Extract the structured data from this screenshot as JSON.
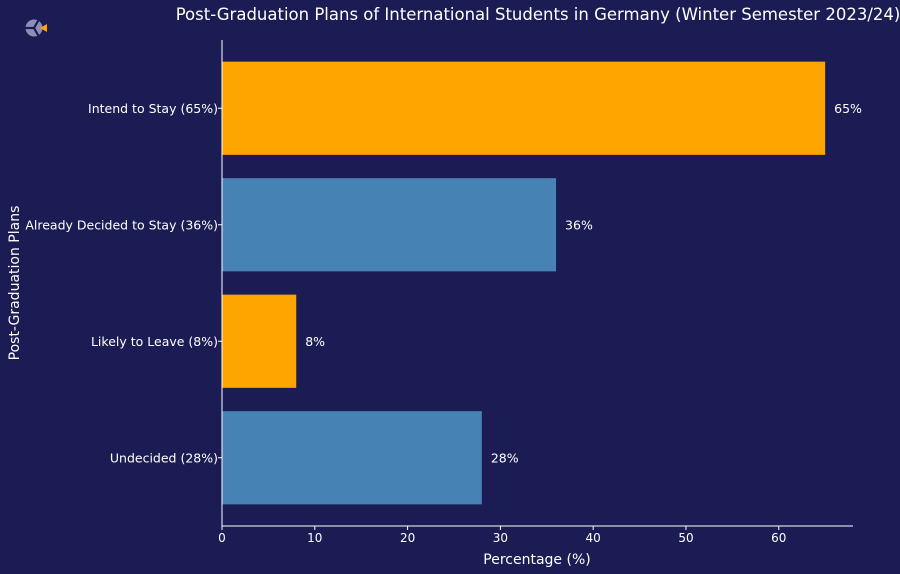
{
  "chart_data": {
    "type": "bar",
    "orientation": "horizontal",
    "title": "Post-Graduation Plans of International Students in Germany (Winter Semester 2023/24)",
    "xlabel": "Percentage (%)",
    "ylabel": "Post-Graduation Plans",
    "xlim": [
      0,
      68
    ],
    "xticks": [
      "0",
      "10",
      "20",
      "30",
      "40",
      "50",
      "60"
    ],
    "grid": false,
    "legend": "none",
    "categories": [
      "Intend to Stay (65%)",
      "Already Decided to Stay (36%)",
      "Likely to Leave (8%)",
      "Undecided (28%)"
    ],
    "values": [
      65,
      36,
      8,
      28
    ],
    "value_labels": [
      "65%",
      "36%",
      "8%",
      "28%"
    ],
    "bar_colors": [
      "#ffa500",
      "#4682b4",
      "#ffa500",
      "#4682b4"
    ]
  },
  "colors": {
    "background": "#1c1c54",
    "axis": "#ffffff",
    "text": "#ffffff",
    "accent_orange": "#ffa500",
    "accent_blue": "#4682b4"
  },
  "logo": {
    "icon": "logo-icon"
  }
}
